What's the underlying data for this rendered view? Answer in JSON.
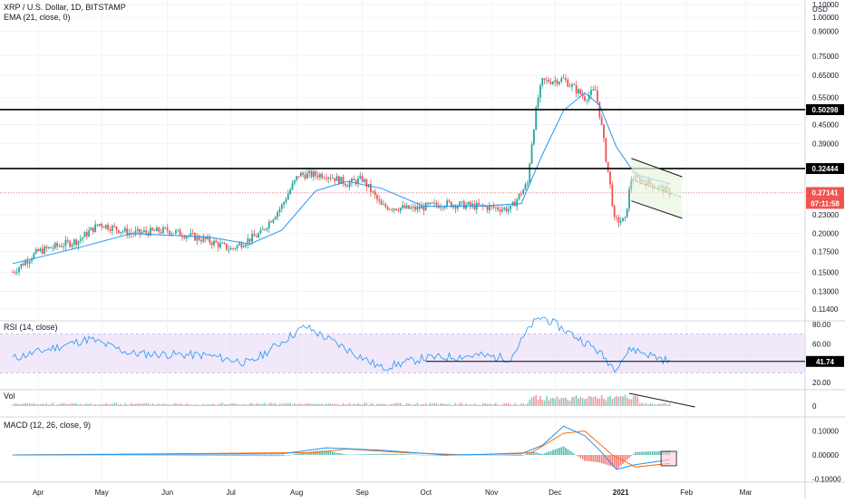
{
  "header": {
    "title": "XRP / U.S. Dollar, 1D, BITSTAMP",
    "ema_label": "EMA (21, close, 0)",
    "currency": "USD"
  },
  "indicators": {
    "rsi_label": "RSI (14, close)",
    "vol_label": "Vol",
    "macd_label": "MACD (12, 26, close, 9)"
  },
  "badges": {
    "last_price": "0.27141",
    "countdown": "07:11:58",
    "level_high": "0.50298",
    "level_mid": "0.32444",
    "rsi_value": "41.74"
  },
  "colors": {
    "up": "#26a69a",
    "down": "#ef5350",
    "ema": "#2196f3",
    "rsi_line": "#2196f3",
    "rsi_band": "#e8d8f6",
    "macd_line": "#2196f3",
    "signal_line": "#ff6d00",
    "hist_up": "#26a69a",
    "hist_down": "#ef5350",
    "pattern_fill": "#e8f5e0"
  },
  "chart_data": [
    {
      "type": "candlestick",
      "scale": "log",
      "y_ticks": [
        "1.10000",
        "1.00000",
        "0.90000",
        "0.75000",
        "0.65000",
        "0.55000",
        "0.45000",
        "0.39000",
        "0.33000",
        "0.27000",
        "0.23000",
        "0.20000",
        "0.17500",
        "0.15000",
        "0.13000",
        "0.11400"
      ],
      "x_ticks": [
        "Apr",
        "May",
        "Jun",
        "Jul",
        "Aug",
        "Sep",
        "Oct",
        "Nov",
        "Dec",
        "2021",
        "Feb",
        "Mar"
      ],
      "date_ticks": [
        "2020-04-01",
        "2020-05-01",
        "2020-06-01",
        "2020-07-01",
        "2020-08-01",
        "2020-09-01",
        "2020-10-01",
        "2020-11-01",
        "2020-12-01",
        "2021-01-01",
        "2021-02-01",
        "2021-03-01"
      ],
      "close_path": [
        [
          "2020-03-20",
          0.15
        ],
        [
          "2020-04-01",
          0.175
        ],
        [
          "2020-04-20",
          0.19
        ],
        [
          "2020-04-30",
          0.215
        ],
        [
          "2020-05-15",
          0.2
        ],
        [
          "2020-06-01",
          0.205
        ],
        [
          "2020-06-20",
          0.19
        ],
        [
          "2020-07-01",
          0.178
        ],
        [
          "2020-07-15",
          0.2
        ],
        [
          "2020-07-25",
          0.245
        ],
        [
          "2020-08-02",
          0.31
        ],
        [
          "2020-08-15",
          0.31
        ],
        [
          "2020-08-25",
          0.29
        ],
        [
          "2020-09-01",
          0.3
        ],
        [
          "2020-09-10",
          0.245
        ],
        [
          "2020-09-25",
          0.24
        ],
        [
          "2020-10-10",
          0.25
        ],
        [
          "2020-10-25",
          0.245
        ],
        [
          "2020-11-10",
          0.24
        ],
        [
          "2020-11-18",
          0.29
        ],
        [
          "2020-11-23",
          0.55
        ],
        [
          "2020-11-25",
          0.62
        ],
        [
          "2020-12-05",
          0.63
        ],
        [
          "2020-12-15",
          0.55
        ],
        [
          "2020-12-20",
          0.58
        ],
        [
          "2020-12-25",
          0.35
        ],
        [
          "2020-12-29",
          0.22
        ],
        [
          "2021-01-03",
          0.22
        ],
        [
          "2021-01-06",
          0.3
        ],
        [
          "2021-01-10",
          0.3
        ],
        [
          "2021-01-15",
          0.29
        ],
        [
          "2021-01-20",
          0.28
        ],
        [
          "2021-01-24",
          0.271
        ]
      ],
      "ema_path": [
        [
          "2020-03-20",
          0.16
        ],
        [
          "2020-04-20",
          0.18
        ],
        [
          "2020-05-15",
          0.2
        ],
        [
          "2020-06-20",
          0.195
        ],
        [
          "2020-07-10",
          0.185
        ],
        [
          "2020-07-25",
          0.205
        ],
        [
          "2020-08-10",
          0.275
        ],
        [
          "2020-08-25",
          0.295
        ],
        [
          "2020-09-10",
          0.28
        ],
        [
          "2020-09-30",
          0.245
        ],
        [
          "2020-10-25",
          0.245
        ],
        [
          "2020-11-15",
          0.25
        ],
        [
          "2020-11-25",
          0.36
        ],
        [
          "2020-12-05",
          0.5
        ],
        [
          "2020-12-15",
          0.57
        ],
        [
          "2020-12-22",
          0.52
        ],
        [
          "2020-12-30",
          0.38
        ],
        [
          "2021-01-08",
          0.31
        ],
        [
          "2021-01-24",
          0.29
        ]
      ],
      "horizontal_levels": [
        0.50298,
        0.32444
      ],
      "last_price": 0.27141,
      "channel_upper": [
        [
          "2021-01-06",
          0.35
        ],
        [
          "2021-01-30",
          0.305
        ]
      ],
      "channel_lower": [
        [
          "2021-01-06",
          0.255
        ],
        [
          "2021-01-30",
          0.224
        ]
      ]
    },
    {
      "type": "line",
      "name": "RSI",
      "y_ticks": [
        "80.00",
        "60.00",
        "20.00"
      ],
      "band": [
        30,
        70
      ],
      "rsi_path": [
        [
          "2020-03-20",
          45
        ],
        [
          "2020-04-25",
          65
        ],
        [
          "2020-05-15",
          50
        ],
        [
          "2020-06-20",
          48
        ],
        [
          "2020-07-10",
          40
        ],
        [
          "2020-07-25",
          62
        ],
        [
          "2020-08-05",
          78
        ],
        [
          "2020-08-20",
          60
        ],
        [
          "2020-09-10",
          35
        ],
        [
          "2020-09-30",
          45
        ],
        [
          "2020-10-25",
          48
        ],
        [
          "2020-11-10",
          45
        ],
        [
          "2020-11-20",
          80
        ],
        [
          "2020-11-25",
          88
        ],
        [
          "2020-12-05",
          75
        ],
        [
          "2020-12-20",
          55
        ],
        [
          "2020-12-29",
          35
        ],
        [
          "2021-01-06",
          55
        ],
        [
          "2021-01-24",
          41.74
        ]
      ],
      "value": 41.74
    },
    {
      "type": "bar",
      "name": "Vol",
      "y_ticks": [
        "0"
      ],
      "trendline": [
        [
          "2021-01-05",
          1.0
        ],
        [
          "2021-02-05",
          0.25
        ]
      ]
    },
    {
      "type": "line",
      "name": "MACD",
      "y_ticks": [
        "0.10000",
        "0.00000",
        "-0.10000"
      ],
      "macd_path": [
        [
          "2020-03-20",
          0.0
        ],
        [
          "2020-07-25",
          0.005
        ],
        [
          "2020-08-15",
          0.03
        ],
        [
          "2020-09-10",
          0.02
        ],
        [
          "2020-10-10",
          0.0
        ],
        [
          "2020-11-15",
          0.005
        ],
        [
          "2020-11-25",
          0.04
        ],
        [
          "2020-12-05",
          0.12
        ],
        [
          "2020-12-15",
          0.08
        ],
        [
          "2020-12-22",
          0.02
        ],
        [
          "2020-12-30",
          -0.06
        ],
        [
          "2021-01-08",
          -0.04
        ],
        [
          "2021-01-24",
          -0.02
        ]
      ],
      "signal_path": [
        [
          "2020-03-20",
          0.0
        ],
        [
          "2020-08-10",
          0.01
        ],
        [
          "2020-08-25",
          0.025
        ],
        [
          "2020-09-20",
          0.01
        ],
        [
          "2020-10-20",
          0.0
        ],
        [
          "2020-11-20",
          0.01
        ],
        [
          "2020-12-05",
          0.09
        ],
        [
          "2020-12-15",
          0.1
        ],
        [
          "2020-12-28",
          0.0
        ],
        [
          "2021-01-08",
          -0.05
        ],
        [
          "2021-01-24",
          -0.035
        ]
      ]
    }
  ]
}
